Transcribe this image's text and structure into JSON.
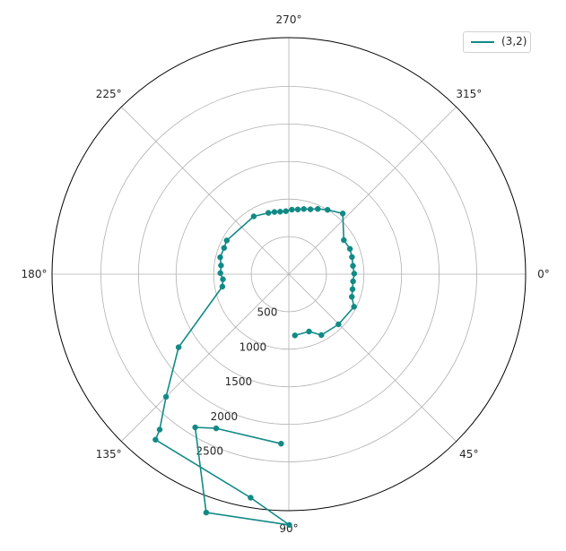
{
  "chart_data": {
    "type": "line",
    "projection": "polar",
    "theta_direction": "clockwise",
    "theta_zero_location": "E",
    "theta_unit": "degrees",
    "theta_tick_labels": [
      "0°",
      "45°",
      "90°",
      "135°",
      "180°",
      "225°",
      "270°",
      "315°"
    ],
    "r_ticks": [
      500,
      1000,
      1500,
      2000,
      2500
    ],
    "r_tick_labels": [
      "500",
      "1000",
      "1500",
      "2000",
      "2500"
    ],
    "rlim": [
      0,
      3150
    ],
    "grid": true,
    "legend": {
      "placement": "top-right",
      "entries": [
        "(3,2)"
      ]
    },
    "series": [
      {
        "name": "(3,2)",
        "color": "#118a86",
        "marker": "circle",
        "theta": [
          84.3,
          70.6,
          61.9,
          45.3,
          26.6,
          19.8,
          13.3,
          6.4,
          359.5,
          352.6,
          344.8,
          337.4,
          328.2,
          311.6,
          301.0,
          293.9,
          288.4,
          282.9,
          277.9,
          272.7,
          267.3,
          262.1,
          257.0,
          251.6,
          238.8,
          208.5,
          202.1,
          193.8,
          187.3,
          180.9,
          175.6,
          169.4,
          146.4,
          135.0,
          129.7,
          128.8,
          99.7,
          89.9,
          109.1,
          121.4,
          115.2,
          92.6
        ],
        "r": [
          820,
          810,
          920,
          940,
          970,
          890,
          870,
          860,
          870,
          860,
          870,
          880,
          860,
          1080,
          1000,
          950,
          910,
          890,
          870,
          860,
          840,
          840,
          850,
          860,
          900,
          940,
          930,
          940,
          910,
          910,
          880,
          900,
          1760,
          2310,
          2690,
          2830,
          3020,
          3340,
          3360,
          2390,
          2270,
          2260
        ]
      }
    ]
  }
}
